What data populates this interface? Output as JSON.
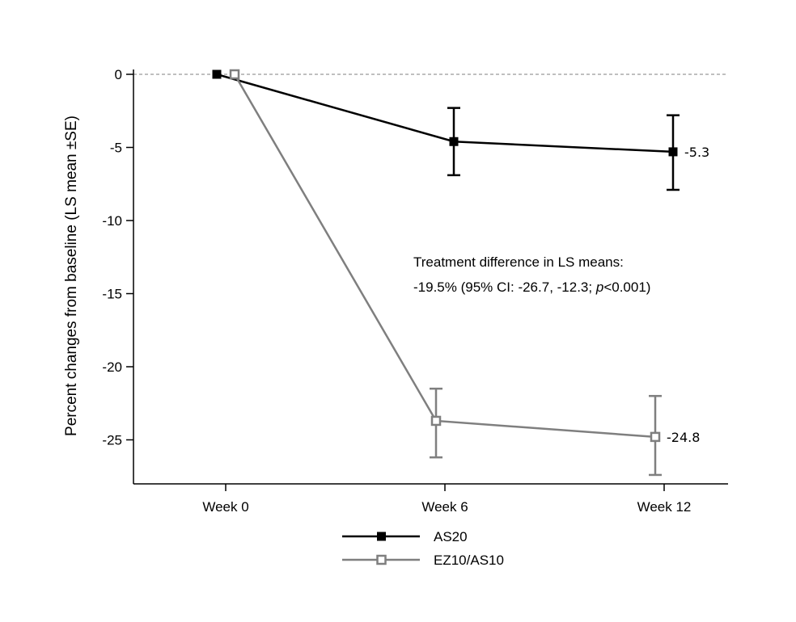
{
  "chart_data": {
    "type": "line",
    "title": "",
    "xlabel": "",
    "ylabel": "Percent changes from baseline (LS mean ±SE)",
    "categories": [
      "Week 0",
      "Week 6",
      "Week 12"
    ],
    "ylim": [
      -28,
      1
    ],
    "yticks": [
      0,
      -5,
      -10,
      -15,
      -20,
      -25
    ],
    "reference_line": 0,
    "grid": false,
    "legend_position": "bottom",
    "series": [
      {
        "name": "AS20",
        "color": "#000000",
        "marker": "filled-square",
        "values": [
          0,
          -4.6,
          -5.3
        ],
        "se_upper": [
          0,
          -2.3,
          -2.8
        ],
        "se_lower": [
          0,
          -6.9,
          -7.9
        ],
        "end_label": "-5.3"
      },
      {
        "name": "EZ10/AS10",
        "color": "#7f7f7f",
        "marker": "open-square",
        "values": [
          0,
          -23.7,
          -24.8
        ],
        "se_upper": [
          0,
          -21.5,
          -22.0
        ],
        "se_lower": [
          0,
          -26.2,
          -27.4
        ],
        "end_label": "-24.8"
      }
    ],
    "annotation": {
      "line1": "Treatment difference in LS means:",
      "line2_prefix": "-19.5% (95% CI: -26.7, -12.3; ",
      "line2_p": "p",
      "line2_suffix": "<0.001)"
    }
  }
}
